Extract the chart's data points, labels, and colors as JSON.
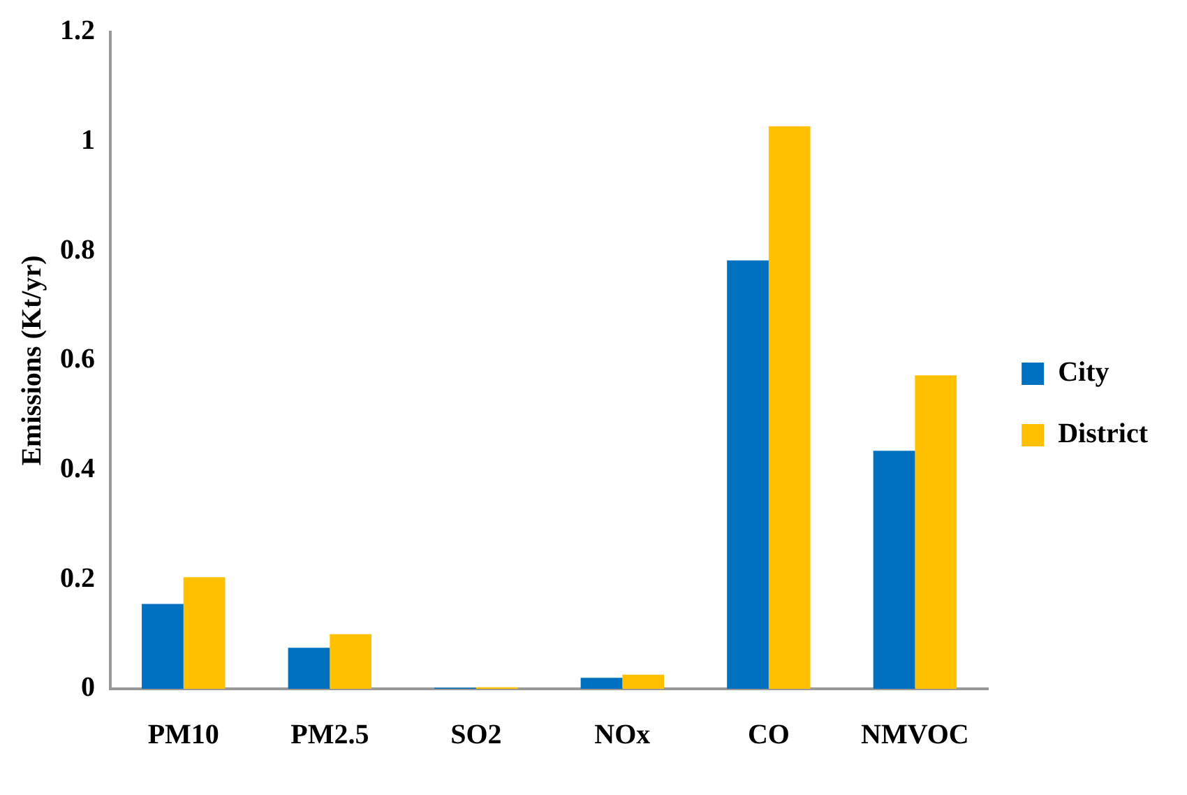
{
  "chart_data": {
    "type": "bar",
    "ylabel": "Emissions (Kt/yr)",
    "categories": [
      "PM10",
      "PM2.5",
      "SO2",
      "NOx",
      "CO",
      "NMVOC"
    ],
    "series": [
      {
        "name": "City",
        "color": "#0070c0",
        "values": [
          0.155,
          0.075,
          0.002,
          0.02,
          0.783,
          0.435
        ]
      },
      {
        "name": "District",
        "color": "#ffc000",
        "values": [
          0.204,
          0.1,
          0.003,
          0.026,
          1.028,
          0.573
        ]
      }
    ],
    "ylim": [
      0,
      1.2
    ],
    "yticks": [
      0,
      0.2,
      0.4,
      0.6,
      0.8,
      1,
      1.2
    ],
    "grid": false,
    "legend": "right"
  }
}
